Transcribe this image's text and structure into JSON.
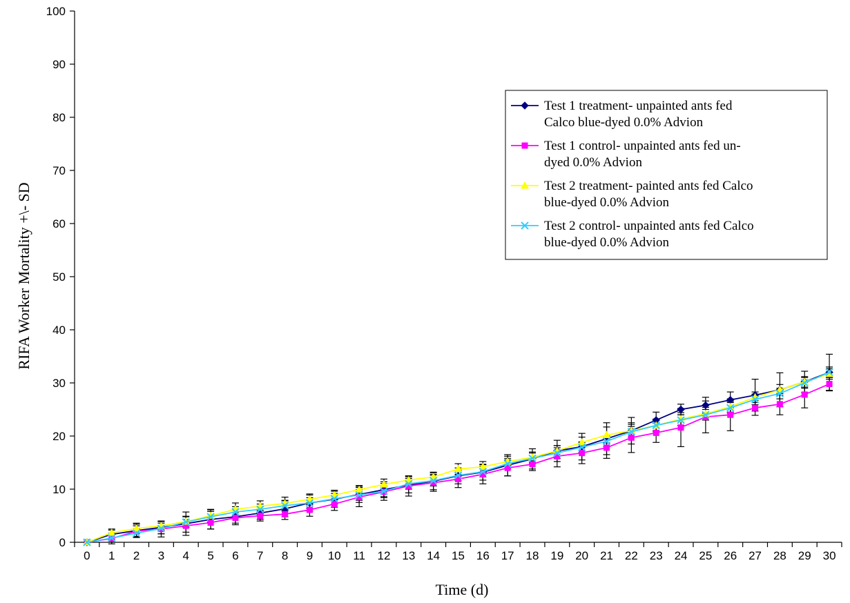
{
  "chart_data": {
    "type": "line",
    "title": "",
    "xlabel": "Time (d)",
    "ylabel": "RIFA Worker Mortality +\\- SD",
    "xlim": [
      0,
      30
    ],
    "ylim": [
      0,
      100
    ],
    "yticks": [
      0,
      10,
      20,
      30,
      40,
      50,
      60,
      70,
      80,
      90,
      100
    ],
    "x": [
      0,
      1,
      2,
      3,
      4,
      5,
      6,
      7,
      8,
      9,
      10,
      11,
      12,
      13,
      14,
      15,
      16,
      17,
      18,
      19,
      20,
      21,
      22,
      23,
      24,
      25,
      26,
      27,
      28,
      29,
      30
    ],
    "grid": false,
    "legend_position": "right",
    "series": [
      {
        "name": "Test 1 treatment- unpainted ants fed Calco blue-dyed 0.0% Advion",
        "legend_lines": [
          "Test 1 treatment- unpainted ants fed",
          "Calco blue-dyed 0.0% Advion"
        ],
        "color": "#000080",
        "marker": "diamond",
        "values": [
          0,
          1.5,
          2.2,
          2.8,
          3.5,
          4.3,
          4.8,
          5.5,
          6.3,
          7.4,
          8.1,
          9.0,
          9.9,
          10.8,
          11.5,
          12.5,
          13.2,
          14.5,
          15.7,
          17.2,
          18.0,
          19.5,
          21.0,
          23.0,
          25.0,
          25.8,
          26.8,
          27.7,
          28.7,
          30.2,
          32.0
        ],
        "sd": [
          0,
          1.0,
          1.2,
          1.2,
          2.2,
          1.8,
          1.5,
          1.2,
          1.5,
          1.5,
          1.5,
          1.5,
          1.5,
          1.5,
          1.6,
          1.5,
          1.5,
          2.0,
          1.9,
          2.0,
          2.5,
          3.0,
          2.5,
          1.5,
          1.0,
          1.5,
          1.5,
          3.0,
          3.2,
          2.0,
          3.4
        ]
      },
      {
        "name": "Test 1 control- unpainted ants fed un-dyed 0.0% Advion",
        "legend_lines": [
          "Test 1 control- unpainted ants fed un-",
          "dyed 0.0% Advion"
        ],
        "color": "#ff00ff",
        "marker": "square",
        "values": [
          0,
          0.7,
          2.1,
          2.5,
          3.1,
          3.7,
          4.6,
          5.0,
          5.3,
          6.1,
          7.2,
          8.5,
          9.5,
          10.6,
          11.2,
          11.9,
          12.8,
          14.0,
          14.7,
          16.2,
          16.8,
          17.8,
          19.7,
          20.6,
          21.6,
          23.6,
          24.0,
          25.3,
          26.0,
          27.8,
          29.8
        ],
        "sd": [
          0,
          1.0,
          1.0,
          1.5,
          1.2,
          1.2,
          1.0,
          1.0,
          1.0,
          1.2,
          1.2,
          1.8,
          1.6,
          1.9,
          1.6,
          1.6,
          1.8,
          1.5,
          1.2,
          2.0,
          2.0,
          2.0,
          2.8,
          1.8,
          3.6,
          3.0,
          3.0,
          1.4,
          2.0,
          2.5,
          1.3
        ]
      },
      {
        "name": "Test 2 treatment- painted ants fed Calco blue-dyed 0.0% Advion",
        "legend_lines": [
          "Test 2 treatment- painted ants fed Calco",
          "blue-dyed 0.0% Advion"
        ],
        "color": "#ffff00",
        "marker": "triangle",
        "values": [
          0,
          1.8,
          2.6,
          3.1,
          3.9,
          5.0,
          6.2,
          6.8,
          7.3,
          8.1,
          8.9,
          9.9,
          10.9,
          11.7,
          12.3,
          13.8,
          14.2,
          15.2,
          16.0,
          17.2,
          18.8,
          20.2,
          21.0,
          22.0,
          23.2,
          24.2,
          25.5,
          27.3,
          28.7,
          30.2,
          31.7
        ],
        "sd": [
          0,
          0.5,
          1.0,
          0.8,
          1.0,
          1.2,
          1.2,
          1.0,
          1.2,
          1.0,
          0.9,
          0.8,
          1.0,
          0.8,
          0.9,
          1.0,
          1.0,
          1.0,
          1.0,
          1.0,
          1.0,
          1.5,
          1.2,
          1.2,
          1.2,
          1.2,
          1.0,
          1.0,
          1.0,
          1.0,
          1.0
        ]
      },
      {
        "name": "Test 2 control- unpainted ants fed Calco blue-dyed 0.0% Advion",
        "legend_lines": [
          "Test 2 control- unpainted ants fed Calco",
          "blue-dyed 0.0% Advion"
        ],
        "color": "#33ccff",
        "marker": "x",
        "values": [
          0,
          0.8,
          1.7,
          2.6,
          3.8,
          4.8,
          5.7,
          6.2,
          6.9,
          7.4,
          8.2,
          8.9,
          9.6,
          11.0,
          11.6,
          12.6,
          13.3,
          14.8,
          15.8,
          16.8,
          17.9,
          19.0,
          20.8,
          22.0,
          23.0,
          24.0,
          25.3,
          26.9,
          28.0,
          30.0,
          32.0
        ],
        "sd": [
          0,
          0.8,
          0.8,
          1.0,
          1.0,
          1.0,
          1.0,
          1.0,
          1.0,
          1.0,
          1.0,
          1.0,
          1.0,
          1.0,
          1.0,
          1.0,
          1.0,
          1.0,
          1.0,
          1.0,
          1.0,
          1.0,
          1.0,
          1.0,
          1.0,
          1.0,
          1.0,
          1.0,
          1.0,
          1.0,
          1.0
        ]
      }
    ]
  }
}
